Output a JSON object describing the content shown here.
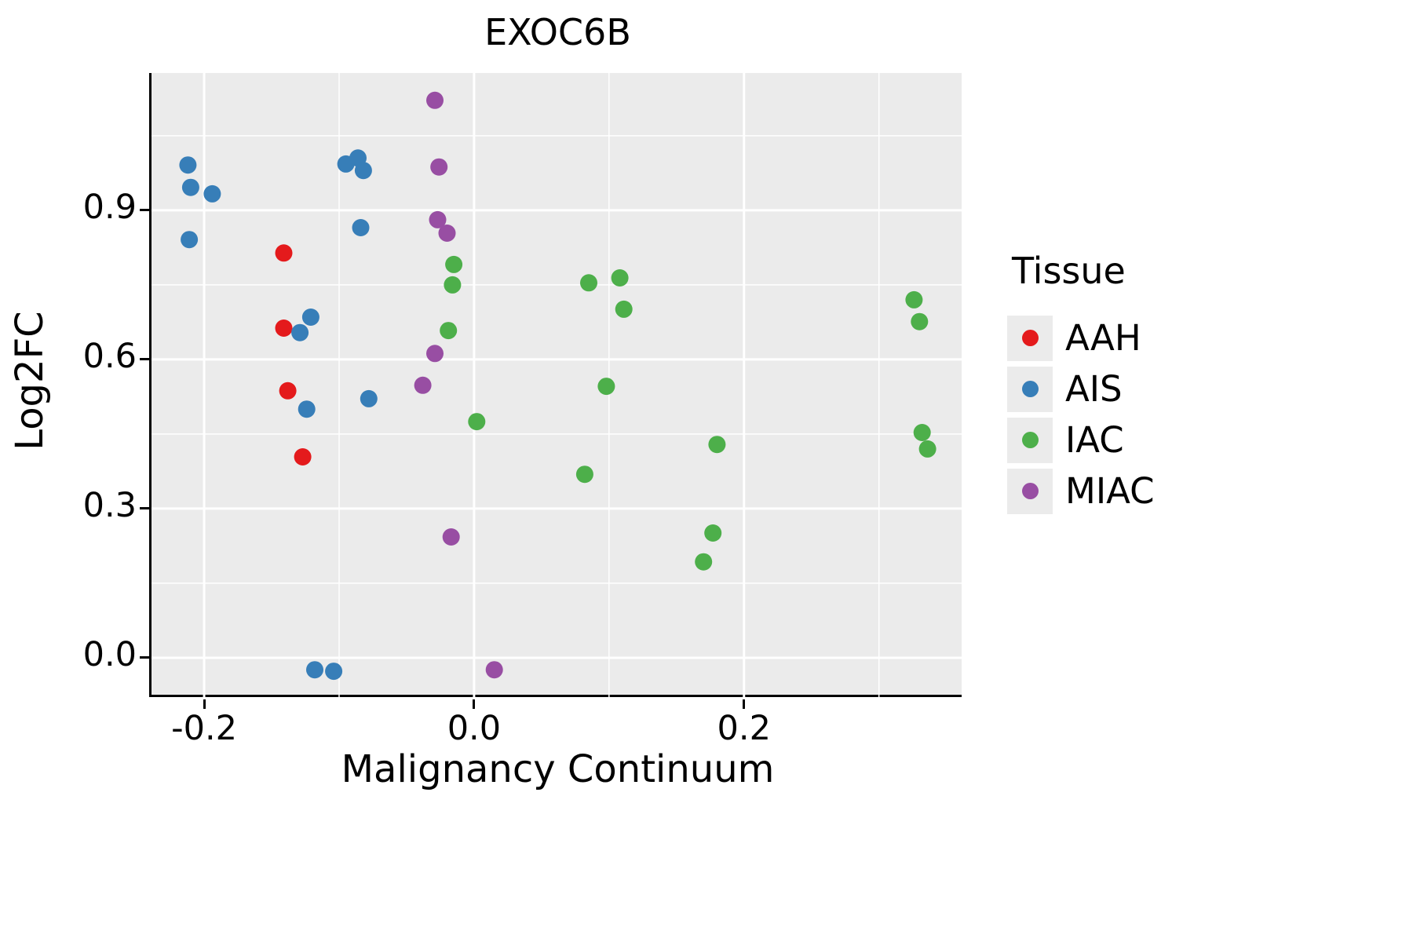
{
  "chart_data": {
    "type": "scatter",
    "title": "EXOC6B",
    "xlabel": "Malignancy Continuum",
    "ylabel": "Log2FC",
    "xlim": [
      -0.239,
      0.363
    ],
    "ylim": [
      -0.079,
      1.176
    ],
    "x_ticks": [
      -0.2,
      0.0,
      0.2
    ],
    "x_tick_labels": [
      "-0.2",
      "0.0",
      "0.2"
    ],
    "y_ticks": [
      0.0,
      0.3,
      0.6,
      0.9
    ],
    "y_tick_labels": [
      "0.0",
      "0.3",
      "0.6",
      "0.9"
    ],
    "x_minor_ticks": [
      -0.1,
      0.1,
      0.3
    ],
    "y_minor_ticks": [
      0.15,
      0.45,
      0.75,
      1.05
    ],
    "grid": true,
    "panel_background": "#EBEBEB",
    "grid_color": "#FFFFFF",
    "legend_title": "Tissue",
    "legend_position": "right",
    "series": [
      {
        "name": "AAH",
        "color": "#E41A1C",
        "points": [
          [
            -0.141,
            0.814
          ],
          [
            -0.141,
            0.663
          ],
          [
            -0.138,
            0.537
          ],
          [
            -0.127,
            0.404
          ]
        ]
      },
      {
        "name": "AIS",
        "color": "#377EB8",
        "points": [
          [
            -0.212,
            0.991
          ],
          [
            -0.21,
            0.946
          ],
          [
            -0.194,
            0.933
          ],
          [
            -0.211,
            0.841
          ],
          [
            -0.095,
            0.993
          ],
          [
            -0.086,
            1.005
          ],
          [
            -0.082,
            0.98
          ],
          [
            -0.084,
            0.865
          ],
          [
            -0.121,
            0.685
          ],
          [
            -0.129,
            0.654
          ],
          [
            -0.124,
            0.5
          ],
          [
            -0.078,
            0.521
          ],
          [
            -0.118,
            -0.024
          ],
          [
            -0.104,
            -0.027
          ]
        ]
      },
      {
        "name": "IAC",
        "color": "#4DAF4A",
        "points": [
          [
            -0.015,
            0.791
          ],
          [
            -0.016,
            0.75
          ],
          [
            -0.019,
            0.658
          ],
          [
            0.002,
            0.475
          ],
          [
            0.085,
            0.754
          ],
          [
            0.108,
            0.764
          ],
          [
            0.111,
            0.701
          ],
          [
            0.098,
            0.546
          ],
          [
            0.082,
            0.369
          ],
          [
            0.18,
            0.429
          ],
          [
            0.177,
            0.251
          ],
          [
            0.17,
            0.193
          ],
          [
            0.326,
            0.72
          ],
          [
            0.33,
            0.676
          ],
          [
            0.332,
            0.453
          ],
          [
            0.336,
            0.42
          ]
        ]
      },
      {
        "name": "MIAC",
        "color": "#984EA3",
        "points": [
          [
            -0.029,
            1.121
          ],
          [
            -0.026,
            0.987
          ],
          [
            -0.027,
            0.881
          ],
          [
            -0.02,
            0.854
          ],
          [
            -0.029,
            0.612
          ],
          [
            -0.038,
            0.548
          ],
          [
            -0.017,
            0.243
          ],
          [
            0.015,
            -0.024
          ]
        ]
      }
    ]
  }
}
